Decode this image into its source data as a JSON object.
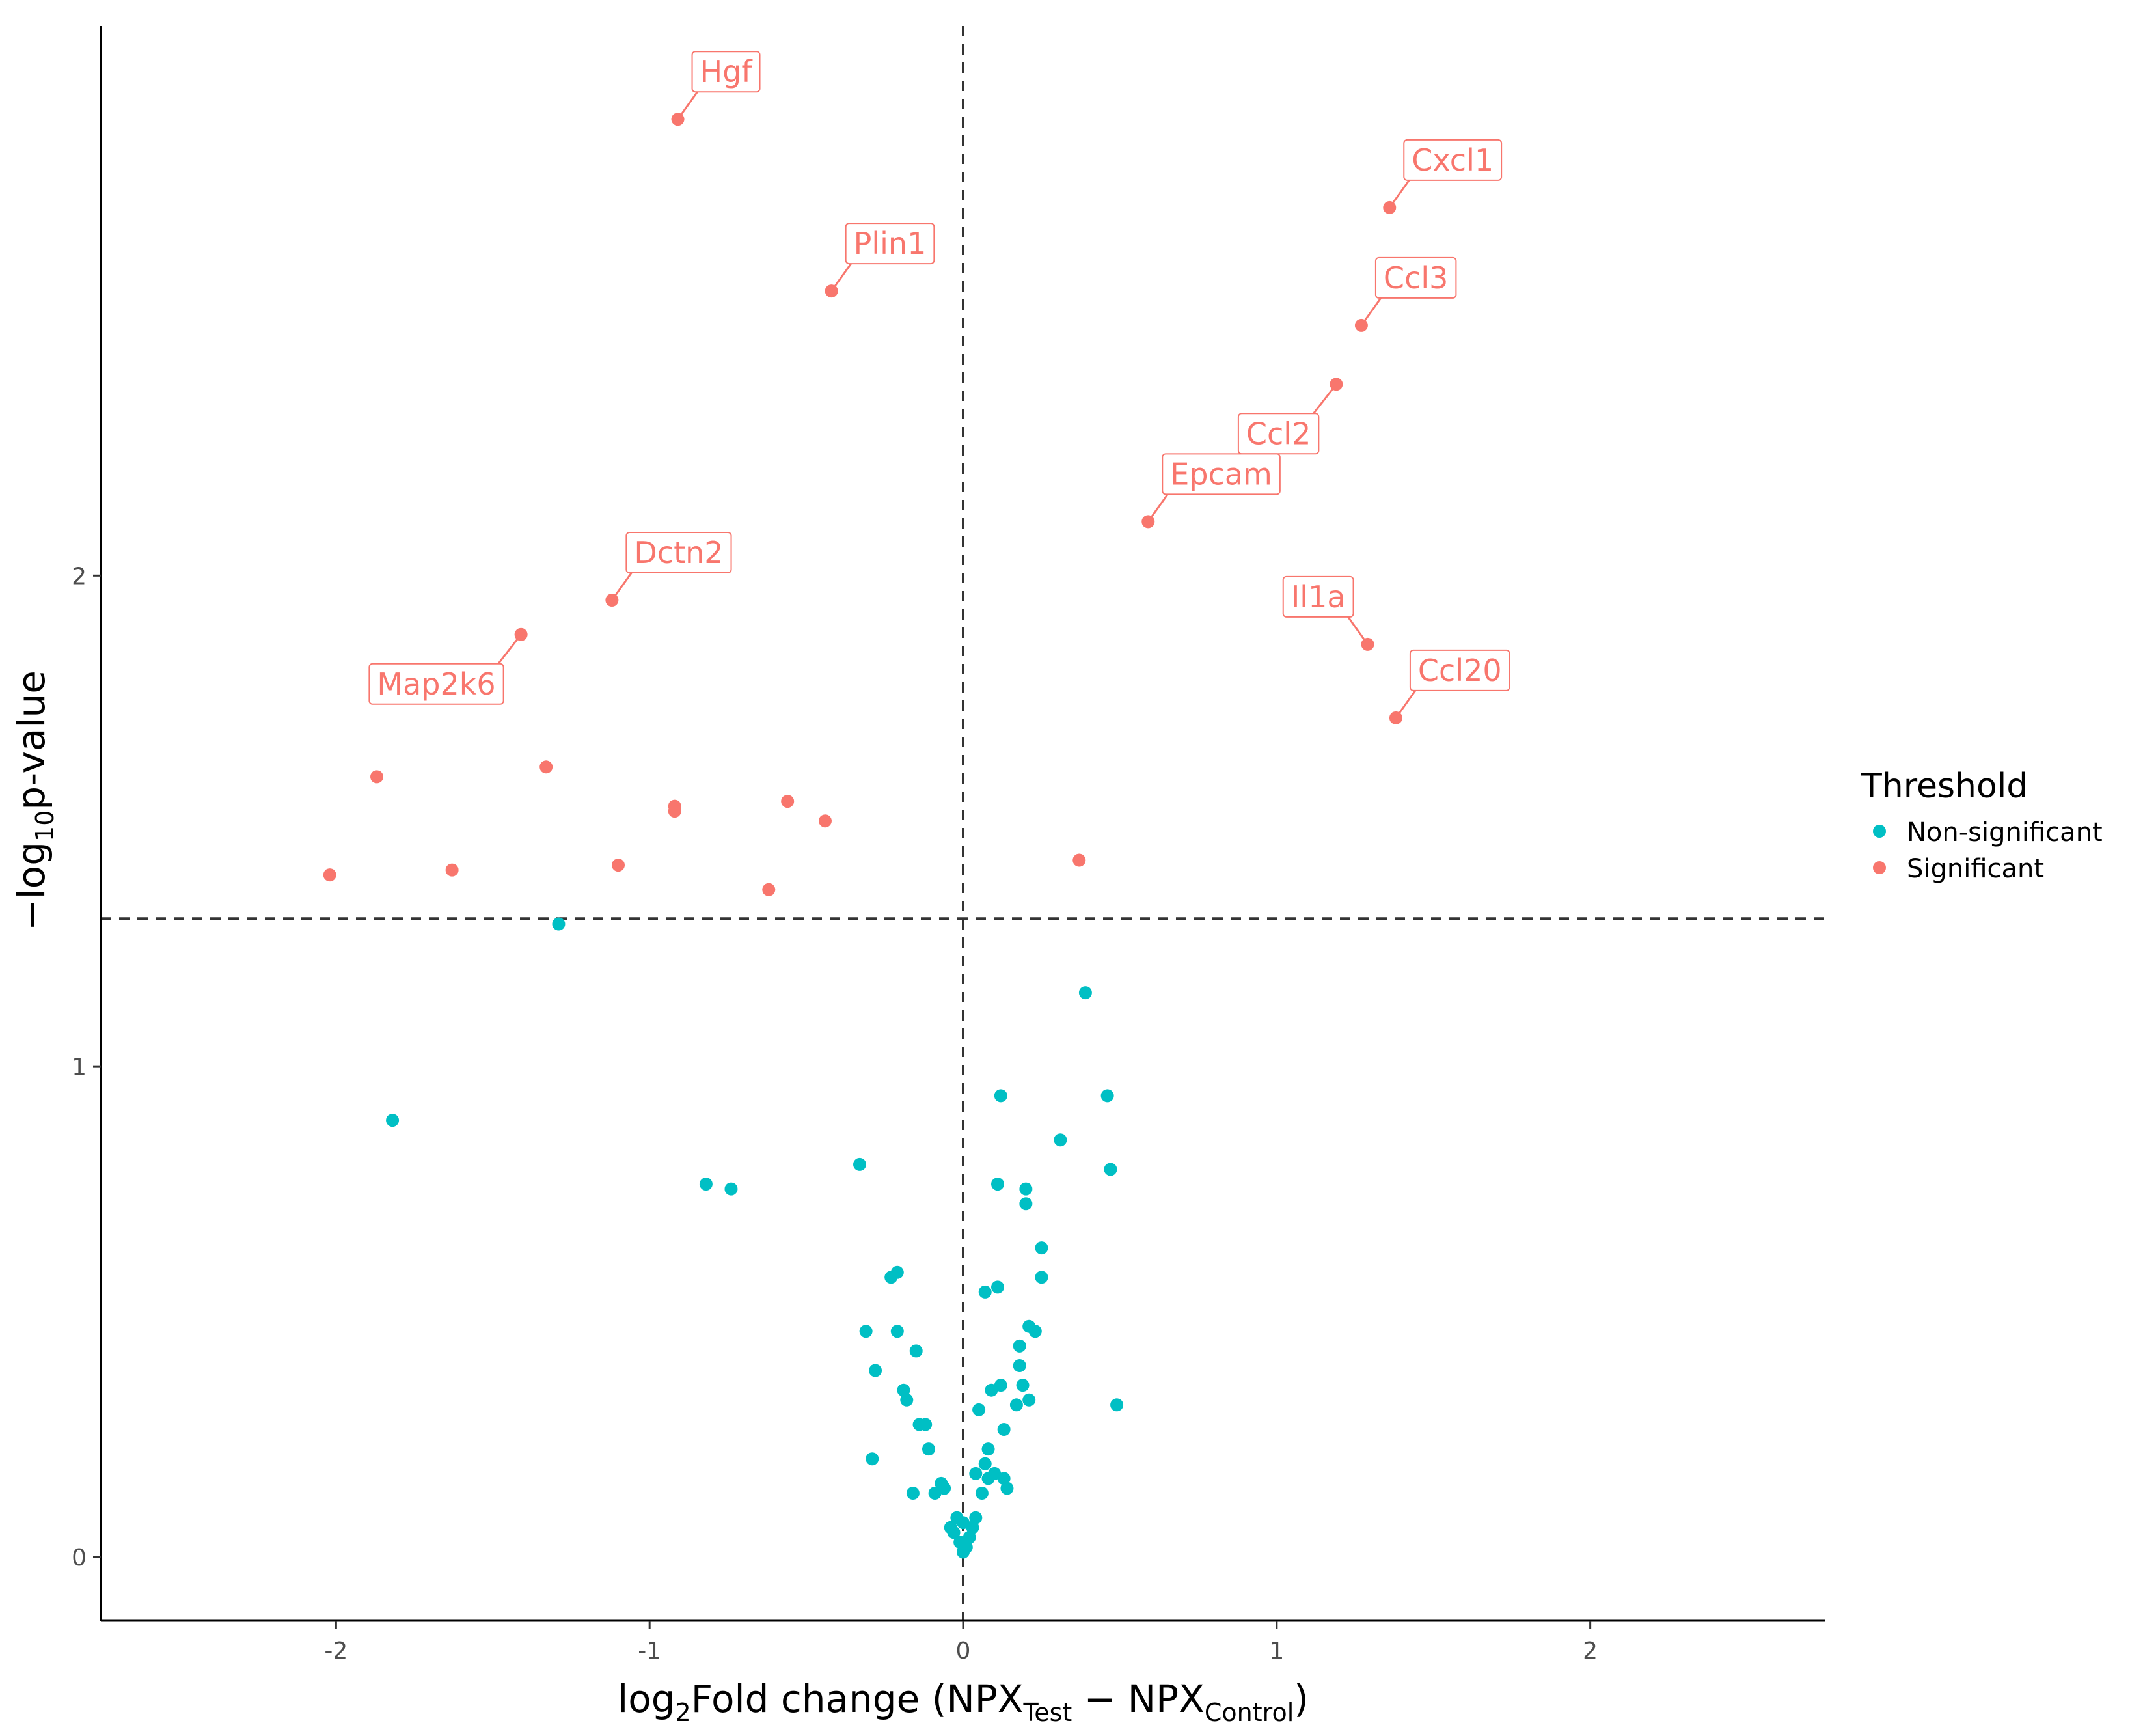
{
  "chart_data": {
    "type": "scatter",
    "title": "",
    "xlabel": {
      "prefix": "log",
      "prefix_sub": "2",
      "main": "Fold change (NPX",
      "test_sub": "Test",
      "minus": " − NPX",
      "control_sub": "Control",
      "suffix": ")"
    },
    "ylabel": {
      "prefix": "−log",
      "prefix_sub": "10",
      "main": "p-value"
    },
    "xlim": [
      -2.75,
      2.75
    ],
    "ylim": [
      -0.13,
      3.12
    ],
    "xticks": [
      -2,
      -1,
      0,
      1,
      2
    ],
    "xtick_labels": [
      "-2",
      "-1",
      "0",
      "1",
      "2"
    ],
    "yticks": [
      0,
      1,
      2
    ],
    "ytick_labels": [
      "0",
      "1",
      "2"
    ],
    "reference_lines": {
      "x": 0,
      "y": 1.301
    },
    "grid": false,
    "legend": {
      "title": "Threshold",
      "position": "right",
      "entries": [
        {
          "label": "Non-significant",
          "color": "#00BFC4"
        },
        {
          "label": "Significant",
          "color": "#F8766D"
        }
      ]
    },
    "series": [
      {
        "name": "Significant",
        "color": "#F8766D",
        "points": [
          {
            "x": -0.91,
            "y": 2.93,
            "label": "Hgf",
            "label_pos": "above-right"
          },
          {
            "x": -0.42,
            "y": 2.58,
            "label": "Plin1",
            "label_pos": "above-right"
          },
          {
            "x": 1.36,
            "y": 2.75,
            "label": "Cxcl1",
            "label_pos": "above-right"
          },
          {
            "x": 1.27,
            "y": 2.51,
            "label": "Ccl3",
            "label_pos": "above-right"
          },
          {
            "x": 1.19,
            "y": 2.39,
            "label": "Ccl2",
            "label_pos": "below-left"
          },
          {
            "x": 0.59,
            "y": 2.11,
            "label": "Epcam",
            "label_pos": "above-right"
          },
          {
            "x": -1.12,
            "y": 1.95,
            "label": "Dctn2",
            "label_pos": "above-right"
          },
          {
            "x": -1.41,
            "y": 1.88,
            "label": "Map2k6",
            "label_pos": "below-left"
          },
          {
            "x": 1.29,
            "y": 1.86,
            "label": "Il1a",
            "label_pos": "above-left"
          },
          {
            "x": 1.38,
            "y": 1.71,
            "label": "Ccl20",
            "label_pos": "above-right"
          },
          {
            "x": -1.87,
            "y": 1.59
          },
          {
            "x": -1.33,
            "y": 1.61
          },
          {
            "x": -0.92,
            "y": 1.53
          },
          {
            "x": -0.92,
            "y": 1.52
          },
          {
            "x": -0.56,
            "y": 1.54
          },
          {
            "x": -0.44,
            "y": 1.5
          },
          {
            "x": -2.02,
            "y": 1.39
          },
          {
            "x": -1.63,
            "y": 1.4
          },
          {
            "x": -1.1,
            "y": 1.41
          },
          {
            "x": -0.62,
            "y": 1.36
          },
          {
            "x": 0.37,
            "y": 1.42
          }
        ]
      },
      {
        "name": "Non-significant",
        "color": "#00BFC4",
        "points": [
          {
            "x": -1.29,
            "y": 1.29
          },
          {
            "x": -1.82,
            "y": 0.89
          },
          {
            "x": -0.82,
            "y": 0.76
          },
          {
            "x": -0.74,
            "y": 0.75
          },
          {
            "x": -0.33,
            "y": 0.8
          },
          {
            "x": 0.39,
            "y": 1.15
          },
          {
            "x": 0.12,
            "y": 0.94
          },
          {
            "x": 0.46,
            "y": 0.94
          },
          {
            "x": 0.31,
            "y": 0.85
          },
          {
            "x": 0.47,
            "y": 0.79
          },
          {
            "x": 0.11,
            "y": 0.76
          },
          {
            "x": 0.2,
            "y": 0.75
          },
          {
            "x": 0.2,
            "y": 0.72
          },
          {
            "x": 0.25,
            "y": 0.63
          },
          {
            "x": -0.23,
            "y": 0.57
          },
          {
            "x": -0.21,
            "y": 0.58
          },
          {
            "x": 0.25,
            "y": 0.57
          },
          {
            "x": 0.07,
            "y": 0.54
          },
          {
            "x": 0.11,
            "y": 0.55
          },
          {
            "x": -0.31,
            "y": 0.46
          },
          {
            "x": -0.21,
            "y": 0.46
          },
          {
            "x": -0.15,
            "y": 0.42
          },
          {
            "x": 0.21,
            "y": 0.47
          },
          {
            "x": 0.23,
            "y": 0.46
          },
          {
            "x": 0.18,
            "y": 0.43
          },
          {
            "x": 0.18,
            "y": 0.39
          },
          {
            "x": -0.28,
            "y": 0.38
          },
          {
            "x": -0.19,
            "y": 0.34
          },
          {
            "x": -0.18,
            "y": 0.32
          },
          {
            "x": 0.09,
            "y": 0.34
          },
          {
            "x": 0.12,
            "y": 0.35
          },
          {
            "x": 0.19,
            "y": 0.35
          },
          {
            "x": 0.05,
            "y": 0.3
          },
          {
            "x": 0.17,
            "y": 0.31
          },
          {
            "x": 0.21,
            "y": 0.32
          },
          {
            "x": 0.49,
            "y": 0.31
          },
          {
            "x": -0.14,
            "y": 0.27
          },
          {
            "x": -0.12,
            "y": 0.27
          },
          {
            "x": 0.13,
            "y": 0.26
          },
          {
            "x": -0.11,
            "y": 0.22
          },
          {
            "x": -0.29,
            "y": 0.2
          },
          {
            "x": 0.08,
            "y": 0.22
          },
          {
            "x": 0.04,
            "y": 0.17
          },
          {
            "x": 0.07,
            "y": 0.19
          },
          {
            "x": 0.1,
            "y": 0.17
          },
          {
            "x": 0.13,
            "y": 0.16
          },
          {
            "x": 0.14,
            "y": 0.14
          },
          {
            "x": -0.07,
            "y": 0.15
          },
          {
            "x": -0.06,
            "y": 0.14
          },
          {
            "x": -0.16,
            "y": 0.13
          },
          {
            "x": -0.09,
            "y": 0.13
          },
          {
            "x": 0.06,
            "y": 0.13
          },
          {
            "x": 0.08,
            "y": 0.16
          },
          {
            "x": -0.02,
            "y": 0.08
          },
          {
            "x": 0.04,
            "y": 0.08
          },
          {
            "x": 0.0,
            "y": 0.07
          },
          {
            "x": -0.03,
            "y": 0.05
          },
          {
            "x": -0.04,
            "y": 0.06
          },
          {
            "x": 0.02,
            "y": 0.04
          },
          {
            "x": 0.03,
            "y": 0.06
          },
          {
            "x": -0.01,
            "y": 0.03
          },
          {
            "x": 0.01,
            "y": 0.02
          },
          {
            "x": 0.0,
            "y": 0.01
          }
        ]
      }
    ]
  }
}
